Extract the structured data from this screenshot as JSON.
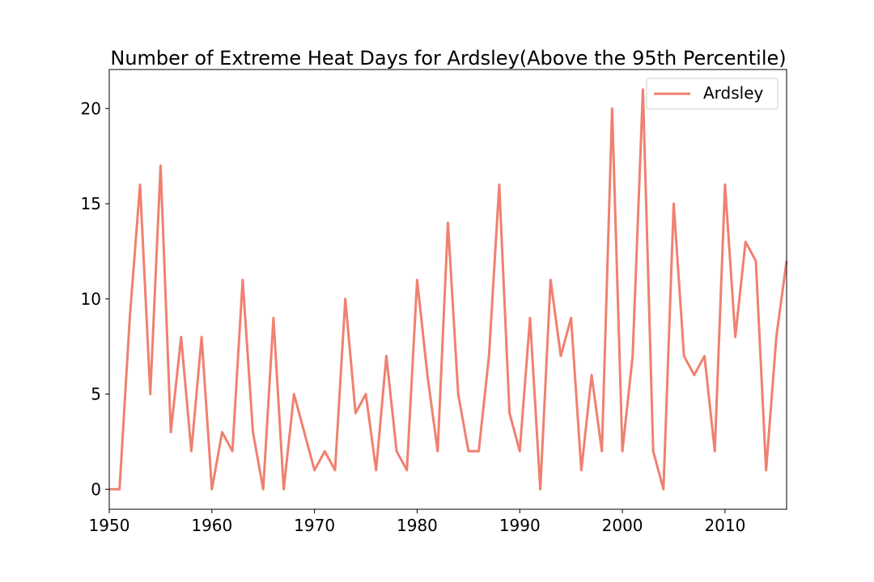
{
  "chart_data": {
    "type": "line",
    "title": "Number of Extreme Heat Days for Ardsley(Above the 95th Percentile)",
    "xlabel": "",
    "ylabel": "",
    "xlim": [
      1950,
      2016
    ],
    "ylim": [
      -1.05,
      22.05
    ],
    "xticks": [
      1950,
      1960,
      1970,
      1980,
      1990,
      2000,
      2010
    ],
    "yticks": [
      0,
      5,
      10,
      15,
      20
    ],
    "xtick_labels": [
      "1950",
      "1960",
      "1970",
      "1980",
      "1990",
      "2000",
      "2010"
    ],
    "ytick_labels": [
      "0",
      "5",
      "10",
      "15",
      "20"
    ],
    "grid": false,
    "legend_position": "top-right",
    "series": [
      {
        "name": "Ardsley",
        "color": "#f08070",
        "x": [
          1950,
          1951,
          1952,
          1953,
          1954,
          1955,
          1956,
          1957,
          1958,
          1959,
          1960,
          1961,
          1962,
          1963,
          1964,
          1965,
          1966,
          1967,
          1968,
          1969,
          1970,
          1971,
          1972,
          1973,
          1974,
          1975,
          1976,
          1977,
          1978,
          1979,
          1980,
          1981,
          1982,
          1983,
          1984,
          1985,
          1986,
          1987,
          1988,
          1989,
          1990,
          1991,
          1992,
          1993,
          1994,
          1995,
          1996,
          1997,
          1998,
          1999,
          2000,
          2001,
          2002,
          2003,
          2004,
          2005,
          2006,
          2007,
          2008,
          2009,
          2010,
          2011,
          2012,
          2013,
          2014,
          2015,
          2016
        ],
        "y": [
          0,
          0,
          9,
          16,
          5,
          17,
          3,
          8,
          2,
          8,
          0,
          3,
          2,
          11,
          3,
          0,
          9,
          0,
          5,
          3,
          1,
          2,
          1,
          10,
          4,
          5,
          1,
          7,
          2,
          1,
          11,
          6,
          2,
          14,
          5,
          2,
          2,
          7,
          16,
          4,
          2,
          9,
          0,
          11,
          7,
          9,
          1,
          6,
          2,
          20,
          2,
          7,
          21,
          2,
          0,
          15,
          7,
          6,
          7,
          2,
          16,
          8,
          13,
          12,
          1,
          8,
          12
        ]
      }
    ]
  }
}
